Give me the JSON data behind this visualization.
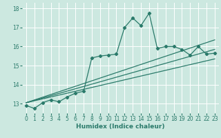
{
  "title": "",
  "xlabel": "Humidex (Indice chaleur)",
  "ylabel": "",
  "xlim": [
    -0.5,
    23.5
  ],
  "ylim": [
    12.5,
    18.3
  ],
  "yticks": [
    13,
    14,
    15,
    16,
    17,
    18
  ],
  "xticks": [
    0,
    1,
    2,
    3,
    4,
    5,
    6,
    7,
    8,
    9,
    10,
    11,
    12,
    13,
    14,
    15,
    16,
    17,
    18,
    19,
    20,
    21,
    22,
    23
  ],
  "bg_color": "#cce8e0",
  "grid_color": "#ffffff",
  "line_color": "#2a7a6a",
  "series": [
    [
      0,
      12.9
    ],
    [
      1,
      12.75
    ],
    [
      2,
      13.05
    ],
    [
      3,
      13.2
    ],
    [
      4,
      13.1
    ],
    [
      5,
      13.35
    ],
    [
      6,
      13.55
    ],
    [
      7,
      13.65
    ],
    [
      8,
      15.4
    ],
    [
      9,
      15.5
    ],
    [
      10,
      15.55
    ],
    [
      11,
      15.6
    ],
    [
      12,
      17.0
    ],
    [
      13,
      17.5
    ],
    [
      14,
      17.1
    ],
    [
      15,
      17.75
    ],
    [
      16,
      15.9
    ],
    [
      17,
      16.0
    ],
    [
      18,
      16.0
    ],
    [
      19,
      15.85
    ],
    [
      20,
      15.55
    ],
    [
      21,
      16.0
    ],
    [
      22,
      15.6
    ],
    [
      23,
      15.65
    ]
  ],
  "linear_lines": [
    {
      "x": [
        0,
        23
      ],
      "y": [
        13.05,
        16.35
      ]
    },
    {
      "x": [
        0,
        23
      ],
      "y": [
        13.05,
        15.85
      ]
    },
    {
      "x": [
        0,
        23
      ],
      "y": [
        13.05,
        15.35
      ]
    }
  ],
  "xlabel_fontsize": 6.5,
  "tick_fontsize": 5.5
}
